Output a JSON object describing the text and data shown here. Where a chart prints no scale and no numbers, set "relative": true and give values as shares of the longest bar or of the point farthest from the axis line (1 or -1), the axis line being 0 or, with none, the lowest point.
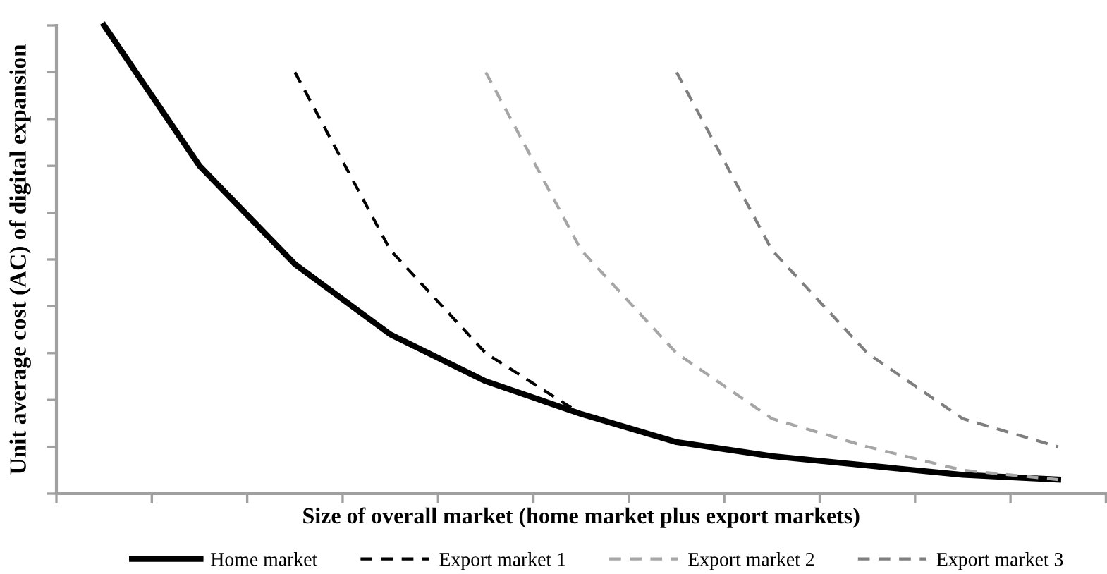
{
  "chart_data": {
    "type": "line",
    "relative": true,
    "tick_labels": false,
    "legend": "bottom",
    "xlabel": "Size of overall market (home market plus export markets)",
    "ylabel": "Unit average cost (AC) of digital expansion",
    "categories": [
      null,
      null,
      null,
      null,
      null,
      null,
      null,
      null,
      null,
      null,
      null
    ],
    "series": [
      {
        "name": "Home market",
        "color": "#000000",
        "line_style": "solid",
        "values": [
          1,
          0.7,
          0.49,
          0.34,
          0.24,
          0.17,
          0.11,
          0.08,
          0.06,
          0.04,
          0.03
        ]
      },
      {
        "name": "Export market 1",
        "color": "#000000",
        "line_style": "dashed",
        "values": [
          null,
          null,
          0.9,
          0.52,
          0.3,
          0.17,
          null,
          null,
          null,
          null,
          null
        ]
      },
      {
        "name": "Export market 2",
        "color": "#a6a6a6",
        "line_style": "dashed",
        "values": [
          null,
          null,
          null,
          null,
          0.9,
          0.52,
          0.3,
          0.16,
          0.1,
          0.05,
          0.03
        ]
      },
      {
        "name": "Export market 3",
        "color": "#7f7f7f",
        "line_style": "dashed",
        "values": [
          null,
          null,
          null,
          null,
          null,
          null,
          0.9,
          0.52,
          0.3,
          0.16,
          0.1
        ]
      }
    ]
  }
}
